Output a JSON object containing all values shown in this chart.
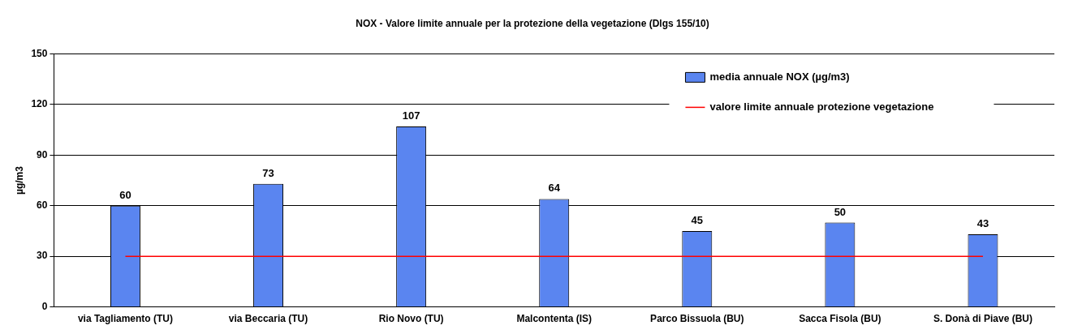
{
  "chart_data": {
    "type": "bar",
    "title": "NOX - Valore limite annuale per la protezione della vegetazione (Dlgs 155/10)",
    "ylabel": "µg/m3",
    "categories": [
      "via Tagliamento (TU)",
      "via Beccaria (TU)",
      "Rio Novo (TU)",
      "Malcontenta (IS)",
      "Parco Bissuola (BU)",
      "Sacca Fisola (BU)",
      "S. Donà di Piave (BU)"
    ],
    "series": [
      {
        "name": "media annuale NOX (µg/m3)",
        "color": "#5a85f0",
        "values": [
          60,
          73,
          107,
          64,
          45,
          50,
          43
        ]
      }
    ],
    "ylim": [
      0,
      150
    ],
    "yticks": [
      0,
      30,
      60,
      90,
      120,
      150
    ],
    "grid": "y",
    "data_labels": true,
    "legend": "top right",
    "ref_lines": [
      {
        "axis": "y",
        "value": 30,
        "label": "valore limite annuale protezione vegetazione",
        "color": "#ff0000"
      }
    ]
  }
}
